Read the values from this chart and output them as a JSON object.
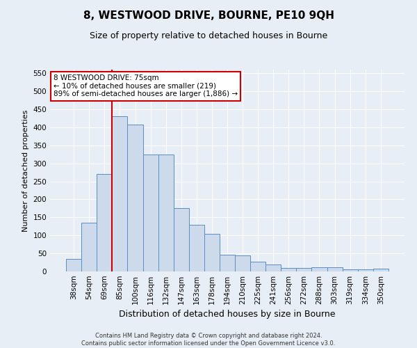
{
  "title": "8, WESTWOOD DRIVE, BOURNE, PE10 9QH",
  "subtitle": "Size of property relative to detached houses in Bourne",
  "xlabel": "Distribution of detached houses by size in Bourne",
  "ylabel": "Number of detached properties",
  "footer_line1": "Contains HM Land Registry data © Crown copyright and database right 2024.",
  "footer_line2": "Contains public sector information licensed under the Open Government Licence v3.0.",
  "categories": [
    "38sqm",
    "54sqm",
    "69sqm",
    "85sqm",
    "100sqm",
    "116sqm",
    "132sqm",
    "147sqm",
    "163sqm",
    "178sqm",
    "194sqm",
    "210sqm",
    "225sqm",
    "241sqm",
    "256sqm",
    "272sqm",
    "288sqm",
    "303sqm",
    "319sqm",
    "334sqm",
    "350sqm"
  ],
  "values": [
    35,
    135,
    270,
    430,
    408,
    325,
    325,
    175,
    130,
    105,
    47,
    45,
    27,
    20,
    9,
    9,
    12,
    12,
    5,
    5,
    8
  ],
  "bar_color": "#ccdaec",
  "bar_edge_color": "#5b8dc0",
  "vline_x_index": 2,
  "vline_color": "#cc0000",
  "annotation_text": "8 WESTWOOD DRIVE: 75sqm\n← 10% of detached houses are smaller (219)\n89% of semi-detached houses are larger (1,886) →",
  "annotation_box_color": "#cc0000",
  "ylim": [
    0,
    560
  ],
  "yticks": [
    0,
    50,
    100,
    150,
    200,
    250,
    300,
    350,
    400,
    450,
    500,
    550
  ],
  "background_color": "#e8eef5",
  "plot_bg_color": "#e8eef5",
  "grid_color": "#ffffff",
  "title_fontsize": 11,
  "subtitle_fontsize": 9,
  "ylabel_fontsize": 8,
  "xlabel_fontsize": 9,
  "tick_fontsize": 7.5,
  "annotation_fontsize": 7.5,
  "footer_fontsize": 6
}
